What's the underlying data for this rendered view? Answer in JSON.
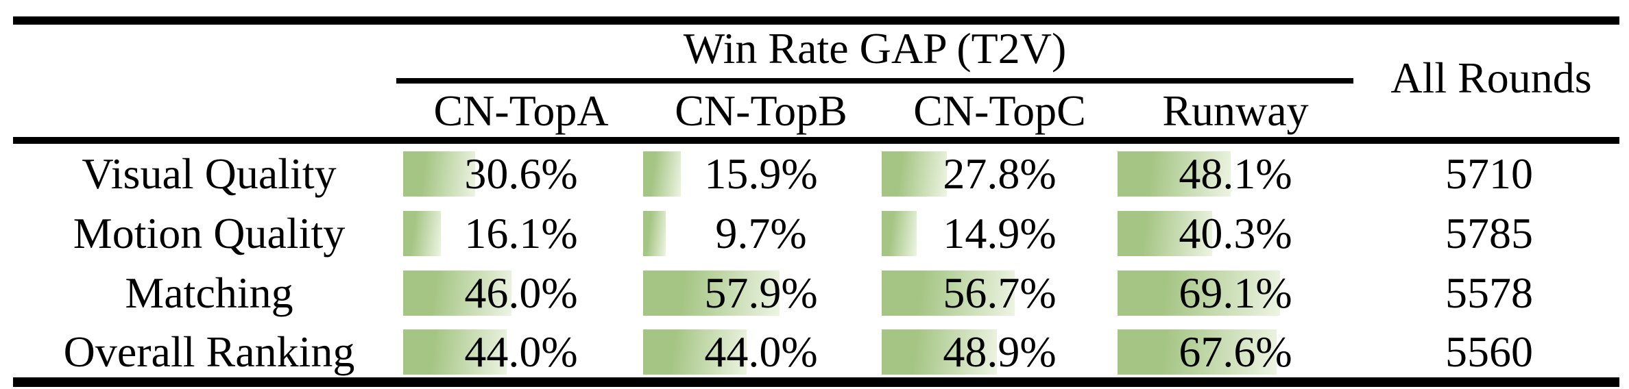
{
  "table": {
    "group_header": "Win Rate GAP (T2V)",
    "all_rounds_header": "All Rounds",
    "columns": [
      "CN-TopA",
      "CN-TopB",
      "CN-TopC",
      "Runway"
    ],
    "rows": [
      {
        "label": "Visual Quality",
        "values": [
          "30.6%",
          "15.9%",
          "27.8%",
          "48.1%"
        ],
        "pcts": [
          30.6,
          15.9,
          27.8,
          48.1
        ],
        "all_rounds": "5710"
      },
      {
        "label": "Motion Quality",
        "values": [
          "16.1%",
          "9.7%",
          "14.9%",
          "40.3%"
        ],
        "pcts": [
          16.1,
          9.7,
          14.9,
          40.3
        ],
        "all_rounds": "5785"
      },
      {
        "label": "Matching",
        "values": [
          "46.0%",
          "57.9%",
          "56.7%",
          "69.1%"
        ],
        "pcts": [
          46.0,
          57.9,
          56.7,
          69.1
        ],
        "all_rounds": "5578"
      },
      {
        "label": "Overall Ranking",
        "values": [
          "44.0%",
          "44.0%",
          "48.9%",
          "67.6%"
        ],
        "pcts": [
          44.0,
          44.0,
          48.9,
          67.6
        ],
        "all_rounds": "5560"
      }
    ],
    "colors": {
      "bar_green": "#a5c584",
      "bar_fade": "#edf4e3",
      "rule_black": "#000000"
    }
  },
  "chart_data": {
    "type": "table",
    "title": "Win Rate GAP (T2V)",
    "categories": [
      "Visual Quality",
      "Motion Quality",
      "Matching",
      "Overall Ranking"
    ],
    "series": [
      {
        "name": "CN-TopA",
        "values": [
          30.6,
          16.1,
          46.0,
          44.0
        ]
      },
      {
        "name": "CN-TopB",
        "values": [
          15.9,
          9.7,
          57.9,
          44.0
        ]
      },
      {
        "name": "CN-TopC",
        "values": [
          27.8,
          14.9,
          56.7,
          48.9
        ]
      },
      {
        "name": "Runway",
        "values": [
          48.1,
          40.3,
          69.1,
          67.6
        ]
      }
    ],
    "extra_column": {
      "name": "All Rounds",
      "values": [
        5710,
        5785,
        5578,
        5560
      ]
    },
    "unit": "%",
    "bar_scale_note": "in-cell bars proportional to percent, 100% = full column width"
  }
}
